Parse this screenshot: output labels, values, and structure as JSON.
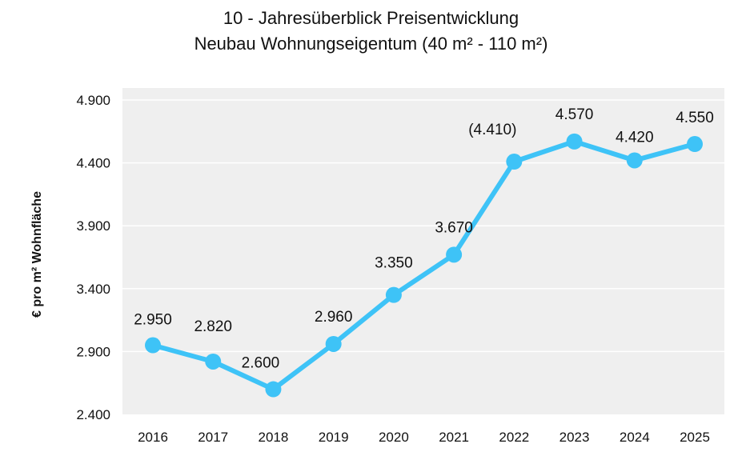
{
  "chart_data": {
    "type": "line",
    "title": [
      "10 - Jahresüberblick Preisentwicklung",
      "Neubau Wohnungseigentum (40 m² - 110 m²)"
    ],
    "xlabel": "",
    "ylabel": "€ pro m² Wohnfläche",
    "categories": [
      "2016",
      "2017",
      "2018",
      "2019",
      "2020",
      "2021",
      "2022",
      "2023",
      "2024",
      "2025"
    ],
    "values": [
      2950,
      2820,
      2600,
      2960,
      3350,
      3670,
      4410,
      4570,
      4420,
      4550
    ],
    "data_labels": [
      "2.950",
      "2.820",
      "2.600",
      "2.960",
      "3.350",
      "3.670",
      "(4.410)",
      "4.570",
      "4.420",
      "4.550"
    ],
    "ylim": [
      2400,
      4900
    ],
    "yticks": [
      2400,
      2900,
      3400,
      3900,
      4400,
      4900
    ],
    "ytick_labels": [
      "2.400",
      "2.900",
      "3.400",
      "3.900",
      "4.400",
      "4.900"
    ],
    "grid": true,
    "legend": "none",
    "colors": {
      "line": "#3ec3f7",
      "plot_bg": "#efefef",
      "grid": "#ffffff"
    }
  }
}
